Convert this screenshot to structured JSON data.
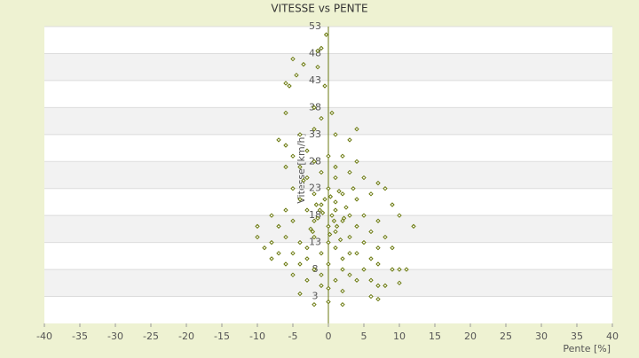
{
  "chart_data": {
    "type": "scatter",
    "title": "VITESSE vs PENTE",
    "x_label": "Pente [%]",
    "y_label": "Vitesse [km/h]",
    "color": "#6b7a10",
    "xlim": [
      -40,
      40
    ],
    "xticks": [
      -40,
      -35,
      -30,
      -25,
      -20,
      -15,
      -10,
      -5,
      0,
      5,
      10,
      15,
      20,
      25,
      30,
      35,
      40
    ],
    "ylim": [
      -2,
      53
    ],
    "yticks": [
      3,
      8,
      13,
      18,
      23,
      28,
      33,
      38,
      43,
      48,
      53
    ],
    "grid": true,
    "x": [
      -0.3,
      -1,
      -1.5,
      -5,
      -3.5,
      -1.5,
      -4.5,
      -6,
      -5.5,
      -0.5,
      -6,
      -2,
      0.5,
      -1,
      -7,
      -6,
      -4,
      -3,
      -2,
      1,
      4,
      3,
      -5,
      -6,
      -4,
      -2,
      0,
      2,
      4,
      -3,
      -1,
      1,
      3,
      5,
      7,
      -5,
      -4,
      -2,
      0,
      2,
      4,
      6,
      8,
      9,
      -8,
      -6,
      -3,
      -1,
      1,
      3,
      5,
      7,
      10,
      12,
      -10,
      -7,
      -5,
      -2,
      0,
      2,
      4,
      6,
      8,
      -10,
      -8,
      -6,
      -4,
      -2,
      0,
      1,
      3,
      5,
      7,
      -9,
      -7,
      -5,
      -3,
      -1,
      1,
      2,
      4,
      6,
      9,
      -8,
      -6,
      -4,
      -2,
      0,
      2,
      3,
      5,
      7,
      -5,
      -3,
      -1,
      1,
      4,
      6,
      7,
      8,
      9,
      10,
      10,
      11,
      -1,
      0,
      2,
      1,
      0.5,
      -0.5,
      1.5,
      -1.5,
      0.2,
      2.5,
      -2.5,
      3.5,
      -3.5,
      0.8,
      -0.8,
      1.2,
      -1.2,
      2.2,
      -2.2,
      0.3,
      1.7,
      -1.7,
      3,
      -3,
      6,
      7,
      -4,
      0,
      2,
      -2,
      1
    ],
    "values": [
      51.5,
      49,
      48.5,
      47,
      46,
      45.5,
      44,
      42.5,
      42,
      42,
      37,
      38,
      37,
      36,
      32,
      31,
      33,
      30,
      34,
      33,
      34,
      32,
      29,
      27,
      27,
      28,
      29,
      29,
      28,
      25,
      26,
      25,
      26,
      25,
      24,
      23,
      21,
      22,
      23,
      22,
      21,
      22,
      23,
      20,
      18,
      19,
      19,
      20,
      19,
      18,
      18,
      17,
      18,
      16,
      16,
      16,
      17,
      17,
      16,
      17,
      16,
      15,
      14,
      14,
      13,
      14,
      13,
      14,
      13,
      15,
      14,
      13,
      12,
      12,
      11,
      11,
      12,
      11,
      12,
      10,
      11,
      10,
      12,
      10,
      9,
      9,
      8,
      9,
      8,
      7,
      8,
      9,
      7,
      6,
      7,
      6,
      6,
      6,
      5,
      5,
      8,
      8,
      5.5,
      8,
      5,
      4.5,
      4,
      20.5,
      18,
      21,
      22.5,
      17.5,
      14.5,
      19.5,
      15.5,
      23,
      24.5,
      17,
      18.5,
      16,
      19,
      17.5,
      15,
      21.5,
      13.5,
      20,
      11,
      10,
      3,
      2.5,
      3.5,
      2,
      1.5,
      1.5,
      27
    ]
  }
}
